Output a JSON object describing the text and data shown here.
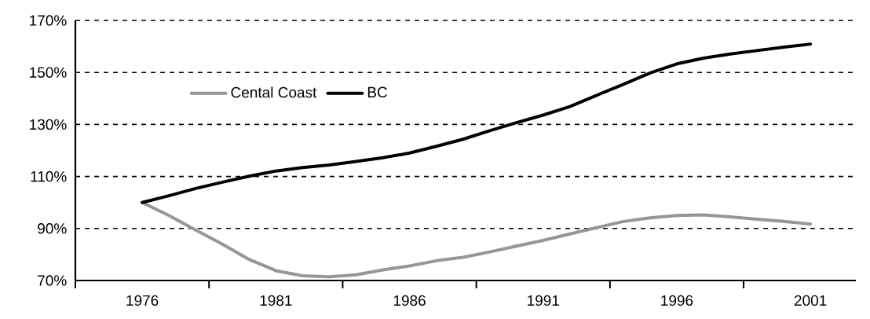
{
  "chart_data": {
    "type": "line",
    "x": [
      1976,
      1977,
      1978,
      1979,
      1980,
      1981,
      1982,
      1983,
      1984,
      1985,
      1986,
      1987,
      1988,
      1989,
      1990,
      1991,
      1992,
      1993,
      1994,
      1995,
      1996,
      1997,
      1998,
      1999,
      2000,
      2001
    ],
    "series": [
      {
        "name": "Cental Coast",
        "color": "#969696",
        "values": [
          100,
          95.0,
          89.4,
          84.0,
          78.1,
          73.8,
          71.8,
          71.4,
          72.2,
          74.1,
          75.6,
          77.6,
          78.9,
          81.0,
          83.2,
          85.4,
          87.9,
          90.3,
          92.7,
          94.1,
          95.0,
          95.2,
          94.5,
          93.6,
          92.7,
          91.7
        ]
      },
      {
        "name": "BC",
        "color": "#000000",
        "values": [
          100,
          102.6,
          105.4,
          107.8,
          110.1,
          112.1,
          113.4,
          114.4,
          115.8,
          117.2,
          119.0,
          121.6,
          124.3,
          127.6,
          130.7,
          133.6,
          136.9,
          141.2,
          145.4,
          149.8,
          153.3,
          155.5,
          157.1,
          158.4,
          159.7,
          160.9
        ]
      }
    ],
    "xlim": [
      1973.5,
      2002.7
    ],
    "xticks": [
      1976,
      1981,
      1986,
      1991,
      1996,
      2001,
      {
        "value": 1973.5,
        "label": null
      },
      {
        "value": 1978.5,
        "label": null
      },
      {
        "value": 1983.5,
        "label": null
      },
      {
        "value": 1988.5,
        "label": null
      },
      {
        "value": 1993.5,
        "label": null
      },
      {
        "value": 1998.5,
        "label": null
      }
    ],
    "ylim": [
      70,
      170
    ],
    "yticks": [
      {
        "value": 70,
        "label": "70%"
      },
      {
        "value": 90,
        "label": "90%"
      },
      {
        "value": 110,
        "label": "110%"
      },
      {
        "value": 130,
        "label": "130%"
      },
      {
        "value": 150,
        "label": "150%"
      },
      {
        "value": 170,
        "label": "170%"
      }
    ],
    "grid": "y",
    "legend": "top left",
    "line_style": "solid",
    "marker": "none"
  }
}
